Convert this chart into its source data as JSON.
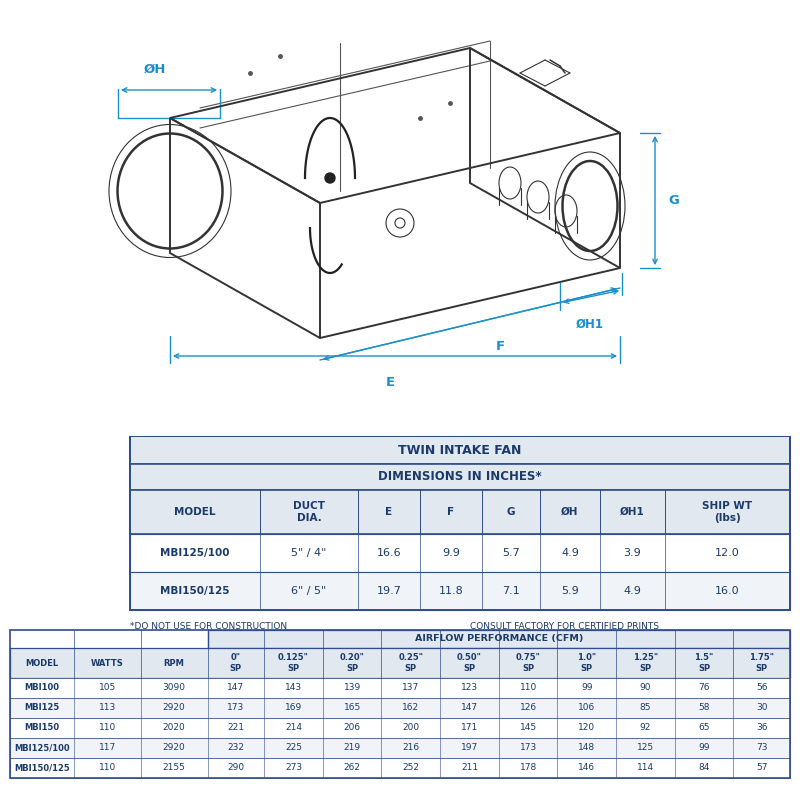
{
  "twin_intake_label": "TWIN INTAKE FAN",
  "dim_label": "DIMENSIONS IN INCHES*",
  "dim_headers": [
    "MODEL",
    "DUCT\nDIA.",
    "E",
    "F",
    "G",
    "ØH",
    "ØH1",
    "SHIP WT\n(lbs)"
  ],
  "dim_rows": [
    [
      "MBI125/100",
      "5\" / 4\"",
      "16.6",
      "9.9",
      "5.7",
      "4.9",
      "3.9",
      "12.0"
    ],
    [
      "MBI150/125",
      "6\" / 5\"",
      "19.7",
      "11.8",
      "7.1",
      "5.9",
      "4.9",
      "16.0"
    ]
  ],
  "disclaimer1": "*DO NOT USE FOR CONSTRUCTION",
  "disclaimer2": "CONSULT FACTORY FOR CERTIFIED PRINTS",
  "perf_label": "AIRFLOW PERFORMANCE (CFM)",
  "perf_col1": [
    "MODEL",
    "WATTS",
    "RPM"
  ],
  "perf_col2": [
    "0\"\nSP",
    "0.125\"\nSP",
    "0.20\"\nSP",
    "0.25\"\nSP",
    "0.50\"\nSP",
    "0.75\"\nSP",
    "1.0\"\nSP",
    "1.25\"\nSP",
    "1.5\"\nSP",
    "1.75\"\nSP"
  ],
  "perf_rows": [
    [
      "MBI100",
      "105",
      "3090",
      "147",
      "143",
      "139",
      "137",
      "123",
      "110",
      "99",
      "90",
      "76",
      "56"
    ],
    [
      "MBI125",
      "113",
      "2920",
      "173",
      "169",
      "165",
      "162",
      "147",
      "126",
      "106",
      "85",
      "58",
      "30"
    ],
    [
      "MBI150",
      "110",
      "2020",
      "221",
      "214",
      "206",
      "200",
      "171",
      "145",
      "120",
      "92",
      "65",
      "36"
    ],
    [
      "MBI125/100",
      "117",
      "2920",
      "232",
      "225",
      "219",
      "216",
      "197",
      "173",
      "148",
      "125",
      "99",
      "73"
    ],
    [
      "MBI150/125",
      "110",
      "2155",
      "290",
      "273",
      "262",
      "252",
      "211",
      "178",
      "146",
      "114",
      "84",
      "57"
    ]
  ],
  "subheader_bg": "#e2e8f0",
  "row_bg": "#ffffff",
  "row_bg_alt": "#f0f4f8",
  "border_color": "#2e4d8a",
  "text_color": "#1a3a6b",
  "arrow_color": "#1a8fcc",
  "drawing_line_color": "#333333",
  "drawing_bg": "#ffffff"
}
